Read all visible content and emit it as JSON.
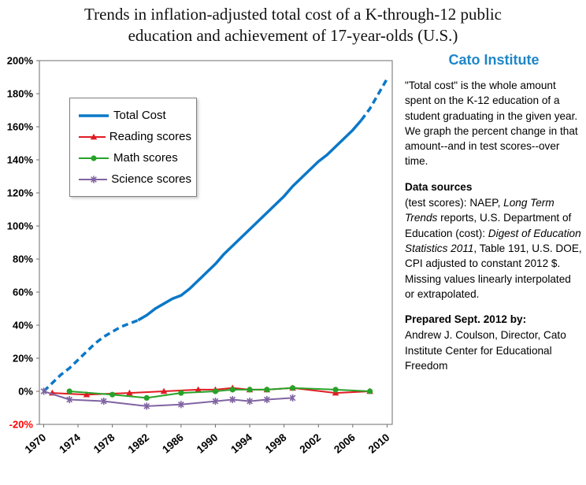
{
  "title": {
    "line1": "Trends in inflation-adjusted total cost of a K-through-12 public",
    "line2": "education and achievement of 17-year-olds  (U.S.)"
  },
  "colors": {
    "cato_blue": "#1F86C8",
    "negative_tick": "#FF0000",
    "axis": "#6e6e6e",
    "text": "#000000"
  },
  "sidebar": {
    "heading": "Cato Institute",
    "paragraphs": [
      {
        "class": "",
        "parts": [
          {
            "text": "\"Total cost\" is the whole amount spent on the K-12 education of a student graduating in the given year. We graph the percent change in that amount--and in test scores--over time."
          }
        ]
      },
      {
        "class": "tight",
        "parts": [
          {
            "text": "Data sources",
            "bold": true
          }
        ]
      },
      {
        "class": "",
        "parts": [
          {
            "text": "(test scores): NAEP, "
          },
          {
            "text": "Long Term Trends",
            "italic": true
          },
          {
            "text": " reports, U.S. Department of Education (cost): "
          },
          {
            "text": "Digest of Education Statistics 2011",
            "italic": true
          },
          {
            "text": ", Table 191, U.S. DOE, CPI adjusted to constant 2012 $.  Missing values linearly interpolated or extrapolated."
          }
        ]
      },
      {
        "class": "tight",
        "parts": [
          {
            "text": "Prepared Sept. 2012 by:",
            "bold": true
          }
        ]
      },
      {
        "class": "",
        "parts": [
          {
            "text": "Andrew J. Coulson, Director, Cato Institute Center for Educational Freedom"
          }
        ]
      }
    ]
  },
  "chart_data": {
    "type": "line",
    "title": "Trends in inflation-adjusted total cost of a K-through-12 public education and achievement of 17-year-olds (U.S.)",
    "xlabel": "",
    "ylabel": "",
    "ylim": [
      -20,
      200
    ],
    "ytick_step": 20,
    "ytick_suffix": "%",
    "xlim": [
      1969.5,
      2010.6
    ],
    "xticks": [
      1970,
      1974,
      1978,
      1982,
      1986,
      1990,
      1994,
      1998,
      2002,
      2006,
      2010
    ],
    "grid": false,
    "legend_position": "upper-left",
    "series": [
      {
        "name": "Total Cost",
        "color": "#0B78C8",
        "width": 3.5,
        "marker": "none",
        "dashed_ranges": [
          [
            1970.5,
            1980.5
          ],
          [
            2006.8,
            2010.6
          ]
        ],
        "x": [
          1970,
          1971,
          1972,
          1973,
          1974,
          1975,
          1976,
          1977,
          1978,
          1979,
          1980,
          1981,
          1982,
          1983,
          1984,
          1985,
          1986,
          1987,
          1988,
          1989,
          1990,
          1991,
          1992,
          1993,
          1994,
          1995,
          1996,
          1997,
          1998,
          1999,
          2000,
          2001,
          2002,
          2003,
          2004,
          2005,
          2006,
          2007,
          2008,
          2009,
          2010
        ],
        "values": [
          0,
          5,
          10,
          14,
          19,
          24,
          29,
          33,
          36,
          39,
          41,
          43,
          46,
          50,
          53,
          56,
          58,
          62,
          67,
          72,
          77,
          83,
          88,
          93,
          98,
          103,
          108,
          113,
          118,
          124,
          129,
          134,
          139,
          143,
          148,
          153,
          158,
          164,
          171,
          180,
          189
        ]
      },
      {
        "name": "Reading scores",
        "color": "#E11B22",
        "width": 2,
        "marker": "triangle",
        "x": [
          1971,
          1975,
          1980,
          1984,
          1988,
          1990,
          1992,
          1994,
          1996,
          1999,
          2004,
          2008
        ],
        "values": [
          -1,
          -2,
          -1,
          0,
          1,
          1,
          2,
          1,
          1,
          2,
          -1,
          0
        ]
      },
      {
        "name": "Math scores",
        "color": "#28A228",
        "width": 2,
        "marker": "circle",
        "x": [
          1973,
          1978,
          1982,
          1986,
          1990,
          1992,
          1994,
          1996,
          1999,
          2004,
          2008
        ],
        "values": [
          0,
          -2,
          -4,
          -1,
          0,
          1,
          1,
          1,
          2,
          1,
          0
        ]
      },
      {
        "name": "Science scores",
        "color": "#8064A2",
        "width": 2,
        "marker": "star",
        "x": [
          1970,
          1973,
          1977,
          1982,
          1986,
          1990,
          1992,
          1994,
          1996,
          1999
        ],
        "values": [
          0,
          -5,
          -6,
          -9,
          -8,
          -6,
          -5,
          -6,
          -5,
          -4
        ]
      }
    ]
  }
}
